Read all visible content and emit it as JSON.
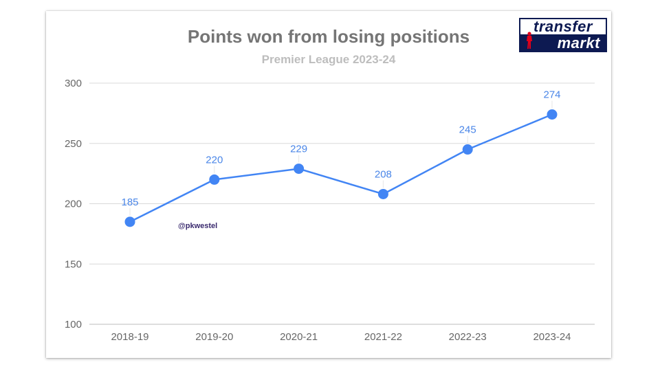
{
  "chart_data": {
    "type": "line",
    "title": "Points won from losing positions",
    "subtitle": "Premier League 2023-24",
    "categories": [
      "2018-19",
      "2019-20",
      "2020-21",
      "2021-22",
      "2022-23",
      "2023-24"
    ],
    "series": [
      {
        "values": [
          185,
          220,
          229,
          208,
          245,
          274
        ],
        "color": "#4285f4"
      }
    ],
    "data_labels": [
      "185",
      "220",
      "229",
      "208",
      "245",
      "274"
    ],
    "ylim": [
      100,
      300
    ],
    "yticks": [
      "100",
      "150",
      "200",
      "250",
      "300"
    ],
    "xlabel": "",
    "ylabel": "",
    "grid": true,
    "legend": "none"
  },
  "logo": {
    "line1": "transfer",
    "line2": "markt"
  },
  "watermark": "@pkwestel",
  "colors": {
    "series": "#4285f4",
    "grid": "#d9d9d9",
    "axis_text": "#666666",
    "label": "#4a86e8"
  }
}
